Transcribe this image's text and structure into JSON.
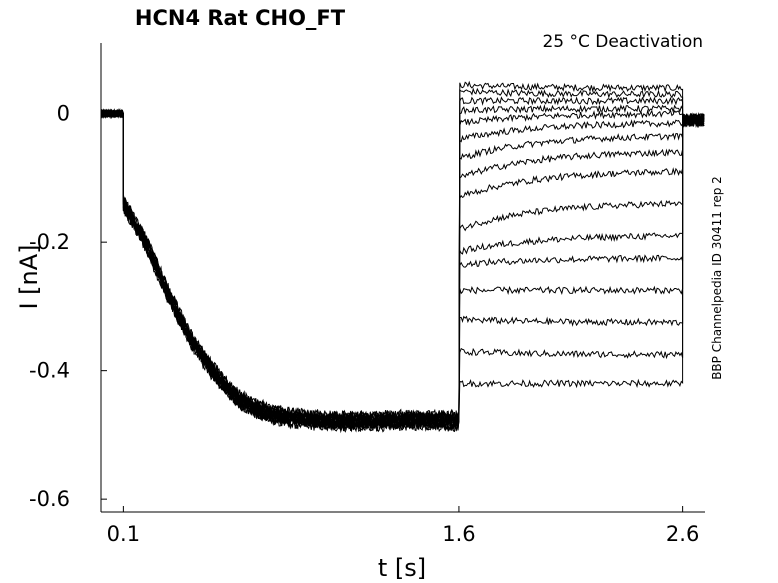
{
  "chart_data": {
    "type": "line",
    "title": "HCN4  Rat  CHO_FT",
    "annotation_top_right": "25 °C  Deactivation",
    "side_label": "BBP Channelpedia ID 30411 rep 2",
    "xlabel": "t [s]",
    "ylabel": "I [nA]",
    "xlim": [
      0.0,
      2.7
    ],
    "ylim": [
      -0.62,
      0.11
    ],
    "xticks": [
      0.1,
      1.6,
      2.6
    ],
    "xtick_labels": [
      "0.1",
      "1.6",
      "2.6"
    ],
    "yticks": [
      0,
      -0.2,
      -0.4,
      -0.6
    ],
    "ytick_labels": [
      "0",
      "-0.2",
      "-0.4",
      "-0.6"
    ],
    "grid": false,
    "legend": "none",
    "line_color": "#000000",
    "protocol_times": {
      "baseline_end": 0.1,
      "step_end": 1.6,
      "sweep_end": 2.6
    },
    "baseline_current": 0.0,
    "activation_phase": {
      "t": [
        0.1,
        0.2,
        0.3,
        0.4,
        0.5,
        0.6,
        0.7,
        0.8,
        0.9,
        1.0,
        1.1,
        1.2,
        1.3,
        1.4,
        1.5,
        1.6
      ],
      "I": [
        -0.14,
        -0.2,
        -0.28,
        -0.35,
        -0.4,
        -0.44,
        -0.46,
        -0.47,
        -0.475,
        -0.477,
        -0.478,
        -0.478,
        -0.477,
        -0.476,
        -0.476,
        -0.478
      ]
    },
    "series": [
      {
        "start": 0.045,
        "end": 0.04
      },
      {
        "start": 0.035,
        "end": 0.03
      },
      {
        "start": 0.02,
        "end": 0.02
      },
      {
        "start": 0.005,
        "end": 0.008
      },
      {
        "start": -0.015,
        "end": 0.0
      },
      {
        "start": -0.04,
        "end": -0.015
      },
      {
        "start": -0.07,
        "end": -0.035
      },
      {
        "start": -0.1,
        "end": -0.06
      },
      {
        "start": -0.13,
        "end": -0.09
      },
      {
        "start": -0.18,
        "end": -0.14
      },
      {
        "start": -0.215,
        "end": -0.19
      },
      {
        "start": -0.235,
        "end": -0.225
      },
      {
        "start": -0.275,
        "end": -0.275
      },
      {
        "start": -0.32,
        "end": -0.325
      },
      {
        "start": -0.37,
        "end": -0.375
      },
      {
        "start": -0.42,
        "end": -0.42
      }
    ]
  }
}
